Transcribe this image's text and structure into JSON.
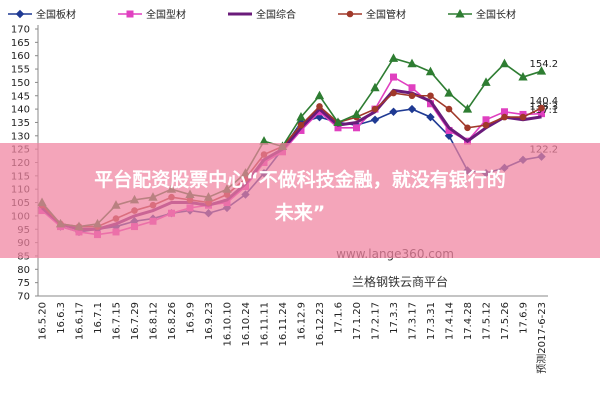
{
  "chart_data": {
    "type": "line",
    "categories": [
      "16.5.20",
      "16.6.3",
      "16.6.17",
      "16.7.1",
      "16.7.15",
      "16.7.29",
      "16.8.12",
      "16.8.26",
      "16.9.9",
      "16.9.23",
      "16.10.10",
      "16.10.24",
      "16.11.11",
      "16.11.24",
      "16.12.9",
      "16.12.23",
      "17.1.6",
      "17.1.20",
      "17.2.17",
      "17.3.3",
      "17.3.17",
      "17.3.31",
      "17.4.14",
      "17.4.28",
      "17.5.12",
      "17.5.26",
      "17.6.9",
      "预测2017-6-23"
    ],
    "series": [
      {
        "name": "全国板材",
        "color": "#1f3a93",
        "marker": "diamond",
        "values": [
          103,
          96,
          94,
          95,
          96,
          98,
          99,
          101,
          102,
          101,
          103,
          108,
          116,
          125,
          135,
          137,
          135,
          134,
          136,
          139,
          140,
          137,
          130,
          117,
          116,
          118,
          121,
          122.2
        ]
      },
      {
        "name": "全国型材",
        "color": "#e040c0",
        "marker": "square",
        "values": [
          102,
          96,
          94,
          93,
          94,
          96,
          98,
          101,
          103,
          104,
          105,
          111,
          120,
          124,
          132,
          139,
          133,
          133,
          140,
          152,
          148,
          142,
          132,
          128,
          136,
          139,
          138,
          138.3
        ]
      },
      {
        "name": "全国综合",
        "color": "#6a1b7a",
        "marker": "none",
        "values": [
          103,
          97,
          95,
          95,
          97,
          100,
          102,
          105,
          105,
          104,
          106,
          112,
          121,
          125,
          133,
          140,
          134,
          135,
          139,
          147,
          146,
          143,
          133,
          128,
          133,
          137,
          136,
          137.1
        ]
      },
      {
        "name": "全国管材",
        "color": "#a0392a",
        "marker": "circle",
        "values": [
          104,
          97,
          96,
          96,
          99,
          102,
          104,
          107,
          106,
          105,
          108,
          114,
          123,
          126,
          134,
          141,
          135,
          137,
          140,
          146,
          145,
          145,
          140,
          133,
          134,
          137,
          137,
          140.4
        ]
      },
      {
        "name": "全国长材",
        "color": "#2e7d32",
        "marker": "triangle",
        "values": [
          105,
          97,
          96,
          97,
          104,
          106,
          107,
          110,
          108,
          107,
          110,
          116,
          128,
          126,
          137,
          145,
          135,
          138,
          148,
          159,
          157,
          154,
          146,
          140,
          150,
          157,
          152,
          154.2
        ]
      }
    ],
    "ylim": [
      70,
      170
    ],
    "yticks": [
      70,
      75,
      80,
      85,
      90,
      95,
      100,
      105,
      110,
      115,
      120,
      125,
      130,
      135,
      140,
      145,
      150,
      155,
      160,
      165,
      170
    ],
    "grid": false
  },
  "watermark": {
    "url": "www.lange360.com",
    "platform": "兰格钢铁云商平台"
  },
  "banner": {
    "line1": "平台配资股票中心“不做科技金融，就没有银行的",
    "line2": "未来”"
  }
}
